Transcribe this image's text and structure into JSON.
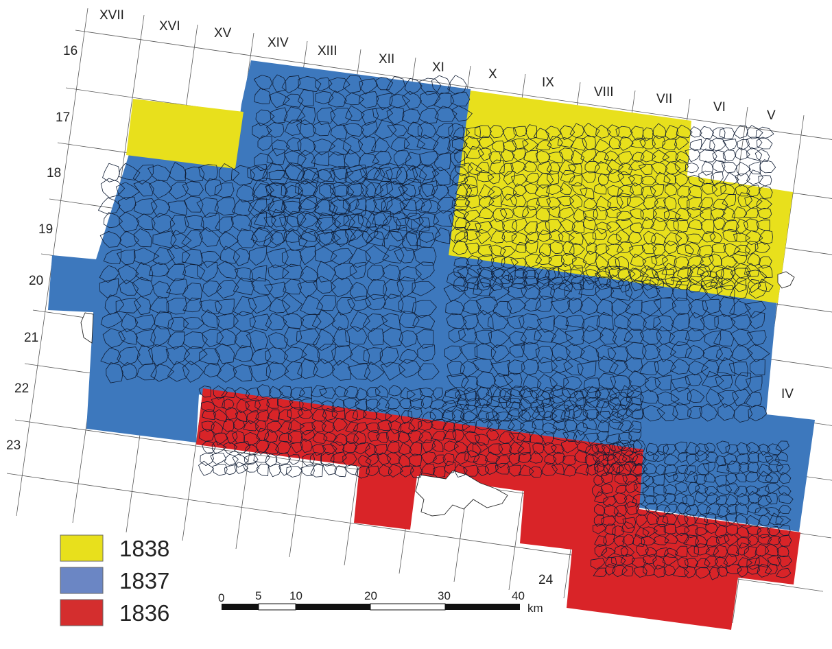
{
  "map": {
    "colors": {
      "year_1838": "#e8e01c",
      "year_1837": "#3d78bd",
      "year_1836": "#d92428"
    },
    "column_labels": [
      "XVII",
      "XVI",
      "XV",
      "XIV",
      "XIII",
      "XII",
      "XI",
      "X",
      "IX",
      "VIII",
      "VII",
      "VI",
      "V",
      "IV"
    ],
    "row_labels": [
      "16",
      "17",
      "18",
      "19",
      "20",
      "21",
      "22",
      "23",
      "24"
    ]
  },
  "legend": {
    "items": [
      {
        "label": "1838",
        "color": "#e8e01c"
      },
      {
        "label": "1837",
        "color": "#6b86c4"
      },
      {
        "label": "1836",
        "color": "#d42e2e"
      }
    ]
  },
  "scale_bar": {
    "ticks": [
      "0",
      "5",
      "10",
      "20",
      "30",
      "40"
    ],
    "unit": "km"
  }
}
